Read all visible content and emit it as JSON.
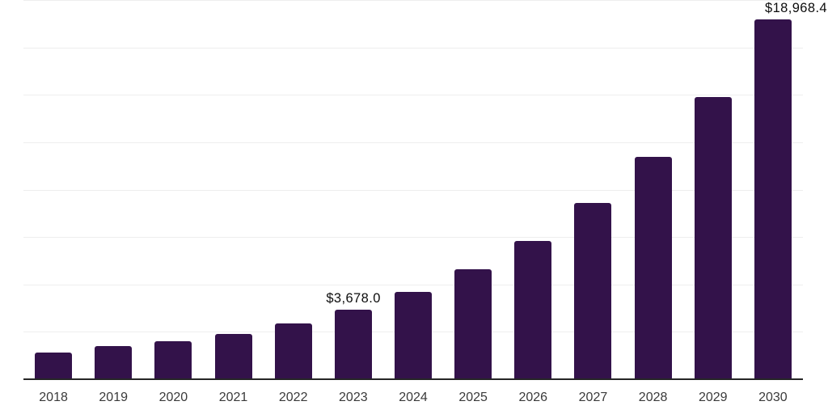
{
  "chart_data": {
    "type": "bar",
    "title": "",
    "xlabel": "",
    "ylabel": "",
    "categories": [
      "2018",
      "2019",
      "2020",
      "2021",
      "2022",
      "2023",
      "2024",
      "2025",
      "2026",
      "2027",
      "2028",
      "2029",
      "2030"
    ],
    "values": [
      1415,
      1770,
      2000,
      2370,
      2925,
      3678.0,
      4600,
      5820,
      7290,
      9280,
      11740,
      14890,
      18968.4
    ],
    "point_labels": [
      "",
      "",
      "",
      "",
      "",
      "$3,678.0",
      "",
      "",
      "",
      "",
      "",
      "",
      "$18,968.4"
    ],
    "ylim": [
      0,
      20000
    ],
    "gridline_step": 2500,
    "grid": "horizontal",
    "y_axis_labels_visible": false,
    "legend": "none",
    "bar_color": "#33124a"
  },
  "colors": {
    "background": "#ffffff",
    "bar": "#33124a",
    "gridline": "#eeeeee",
    "axis_line": "#262626",
    "tick_label": "#3a3a3a",
    "value_label": "#0d0d0d"
  }
}
